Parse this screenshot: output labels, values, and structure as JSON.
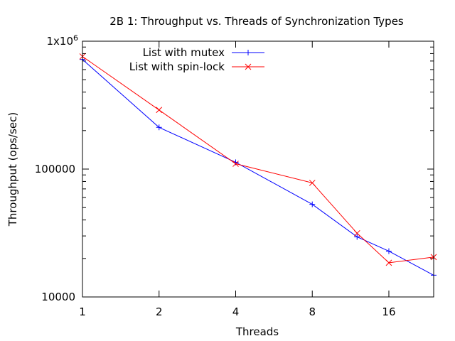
{
  "chart_data": {
    "type": "line",
    "title": "2B 1: Throughput vs. Threads of Synchronization Types",
    "xlabel": "Threads",
    "ylabel": "Throughput (ops/sec)",
    "xscale": "log2",
    "yscale": "log10",
    "xlim": [
      1,
      24
    ],
    "ylim": [
      10000,
      1000000
    ],
    "xticks": [
      {
        "value": 1,
        "label": "1"
      },
      {
        "value": 2,
        "label": "2"
      },
      {
        "value": 4,
        "label": "4"
      },
      {
        "value": 8,
        "label": "8"
      },
      {
        "value": 16,
        "label": "16"
      }
    ],
    "yticks": [
      {
        "value": 10000,
        "label": "10000"
      },
      {
        "value": 100000,
        "label": "100000"
      },
      {
        "value": 1000000,
        "label": "1x10",
        "sup": "6"
      }
    ],
    "legend_position": "top-left",
    "series": [
      {
        "name": "List with mutex",
        "color": "#0000ff",
        "marker": "plus",
        "x": [
          1,
          2,
          4,
          8,
          12,
          16,
          24
        ],
        "y": [
          720000,
          212000,
          113000,
          53000,
          29500,
          22800,
          14800
        ]
      },
      {
        "name": "List with spin-lock",
        "color": "#ff0000",
        "marker": "cross",
        "x": [
          1,
          2,
          4,
          8,
          12,
          16,
          24
        ],
        "y": [
          760000,
          290000,
          110000,
          78000,
          31500,
          18500,
          20500
        ]
      }
    ]
  }
}
